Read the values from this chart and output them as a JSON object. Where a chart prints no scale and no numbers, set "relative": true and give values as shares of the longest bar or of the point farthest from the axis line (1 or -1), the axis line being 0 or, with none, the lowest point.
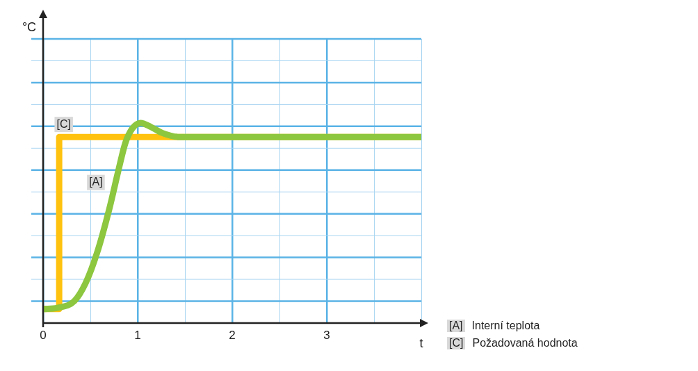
{
  "chart_data": {
    "type": "line",
    "relative": true,
    "xlabel": "t",
    "xlim": [
      0,
      4
    ],
    "xticks": [
      0,
      {
        "value": 0.5,
        "label": null
      },
      1,
      {
        "value": 1.5,
        "label": null
      },
      2,
      {
        "value": 2.5,
        "label": null
      },
      3,
      {
        "value": 3.5,
        "label": null
      },
      {
        "value": 4,
        "label": null
      }
    ],
    "grid": true,
    "legend": "bottom right",
    "marker": "none",
    "line_style": "solid",
    "series": [
      {
        "name": "[A] Interní teplota",
        "color": "#8dc63f",
        "x": [
          0,
          0.15,
          0.33,
          0.45,
          0.57,
          0.7,
          0.8,
          0.87,
          0.94,
          1.03,
          1.14,
          1.26,
          1.44,
          1.75,
          4
        ],
        "values": [
          0.07,
          0.076,
          0.11,
          0.2,
          0.35,
          0.57,
          0.77,
          0.9,
          0.97,
          1,
          0.98,
          0.95,
          0.93,
          0.93,
          0.93
        ]
      },
      {
        "name": "[C] Požadovaná hodnota",
        "color": "#ffc20e",
        "x": [
          0,
          0.17,
          0.17,
          4
        ],
        "values": [
          0.07,
          0.07,
          0.93,
          0.93
        ]
      }
    ],
    "annotations": [
      "°C",
      {
        "text": "[A]",
        "x": 0.72,
        "y": 0.64
      },
      {
        "text": "[C]",
        "x": 0.38,
        "y": 0.93
      }
    ]
  }
}
